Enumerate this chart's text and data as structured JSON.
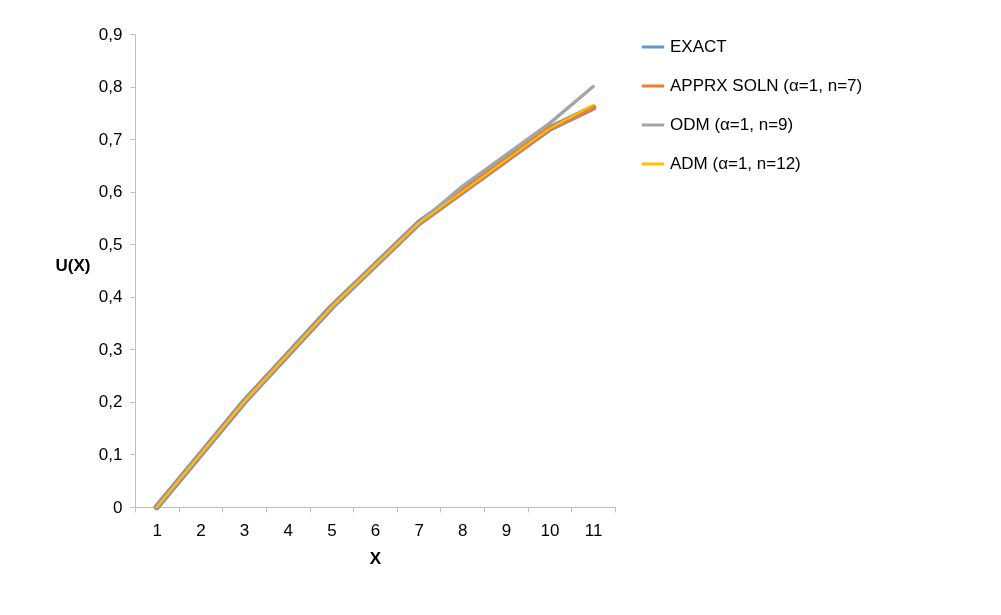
{
  "chart_data": {
    "type": "line",
    "xlabel": "X",
    "ylabel": "U(X)",
    "categories": [
      "1",
      "2",
      "3",
      "4",
      "5",
      "6",
      "7",
      "8",
      "9",
      "10",
      "11"
    ],
    "series": [
      {
        "name": "EXACT",
        "color": "#5b9bd5",
        "values": [
          0,
          0.1,
          0.2,
          0.29,
          0.38,
          0.46,
          0.54,
          0.6,
          0.66,
          0.72,
          0.76
        ]
      },
      {
        "name": "APPRX SOLN (α=1, n=7)",
        "color": "#ed7d31",
        "values": [
          0,
          0.1,
          0.2,
          0.29,
          0.38,
          0.46,
          0.54,
          0.6,
          0.66,
          0.72,
          0.76
        ]
      },
      {
        "name": "ODM (α=1, n=9)",
        "color": "#a5a5a5",
        "values": [
          0,
          0.1,
          0.2,
          0.29,
          0.38,
          0.46,
          0.54,
          0.61,
          0.67,
          0.73,
          0.8
        ]
      },
      {
        "name": "ADM (α=1, n=12)",
        "color": "#ffc000",
        "values": [
          0,
          0.1,
          0.2,
          0.29,
          0.38,
          0.46,
          0.54,
          0.6,
          0.66,
          0.72,
          0.765
        ]
      }
    ],
    "ylim": [
      0,
      0.9
    ],
    "yticks": [
      0,
      {
        "value": 0.1,
        "label": "0,1"
      },
      {
        "value": 0.2,
        "label": "0,2"
      },
      {
        "value": 0.3,
        "label": "0,3"
      },
      {
        "value": 0.4,
        "label": "0,4"
      },
      {
        "value": 0.5,
        "label": "0,5"
      },
      {
        "value": 0.6,
        "label": "0,6"
      },
      {
        "value": 0.7,
        "label": "0,7"
      },
      {
        "value": 0.8,
        "label": "0,8"
      },
      {
        "value": 0.9,
        "label": "0,9"
      }
    ],
    "grid": false,
    "legend": "right",
    "marker": "none",
    "line_style": "solid"
  }
}
